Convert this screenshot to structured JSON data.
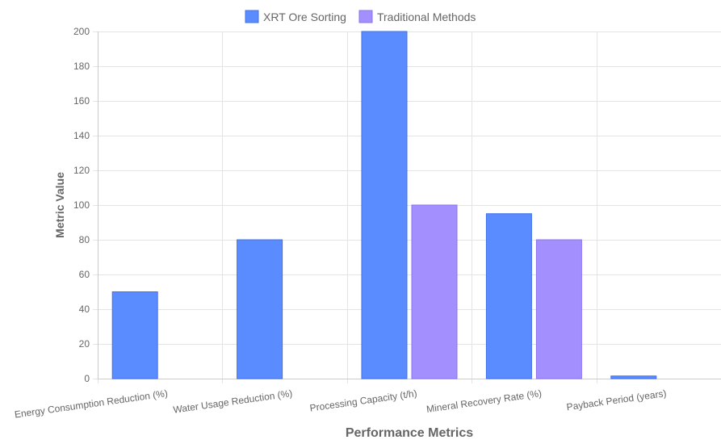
{
  "chart_data": {
    "type": "bar",
    "title": "",
    "xlabel": "Performance Metrics",
    "ylabel": "Metric Value",
    "ylim": [
      0,
      200
    ],
    "yticks": [
      0,
      20,
      40,
      60,
      80,
      100,
      120,
      140,
      160,
      180,
      200
    ],
    "grid": true,
    "legend_position": "top-center",
    "categories": [
      "Energy Consumption Reduction (%)",
      "Water Usage Reduction (%)",
      "Processing Capacity (t/h)",
      "Mineral Recovery Rate (%)",
      "Payback Period (years)"
    ],
    "series": [
      {
        "name": "XRT Ore Sorting",
        "color": "#5b8cff",
        "border": "#3f6fe8",
        "values": [
          50,
          80,
          200,
          95,
          1.5
        ]
      },
      {
        "name": "Traditional Methods",
        "color": "#a48fff",
        "border": "#8c73f0",
        "values": [
          null,
          null,
          100,
          80,
          null
        ]
      }
    ]
  }
}
